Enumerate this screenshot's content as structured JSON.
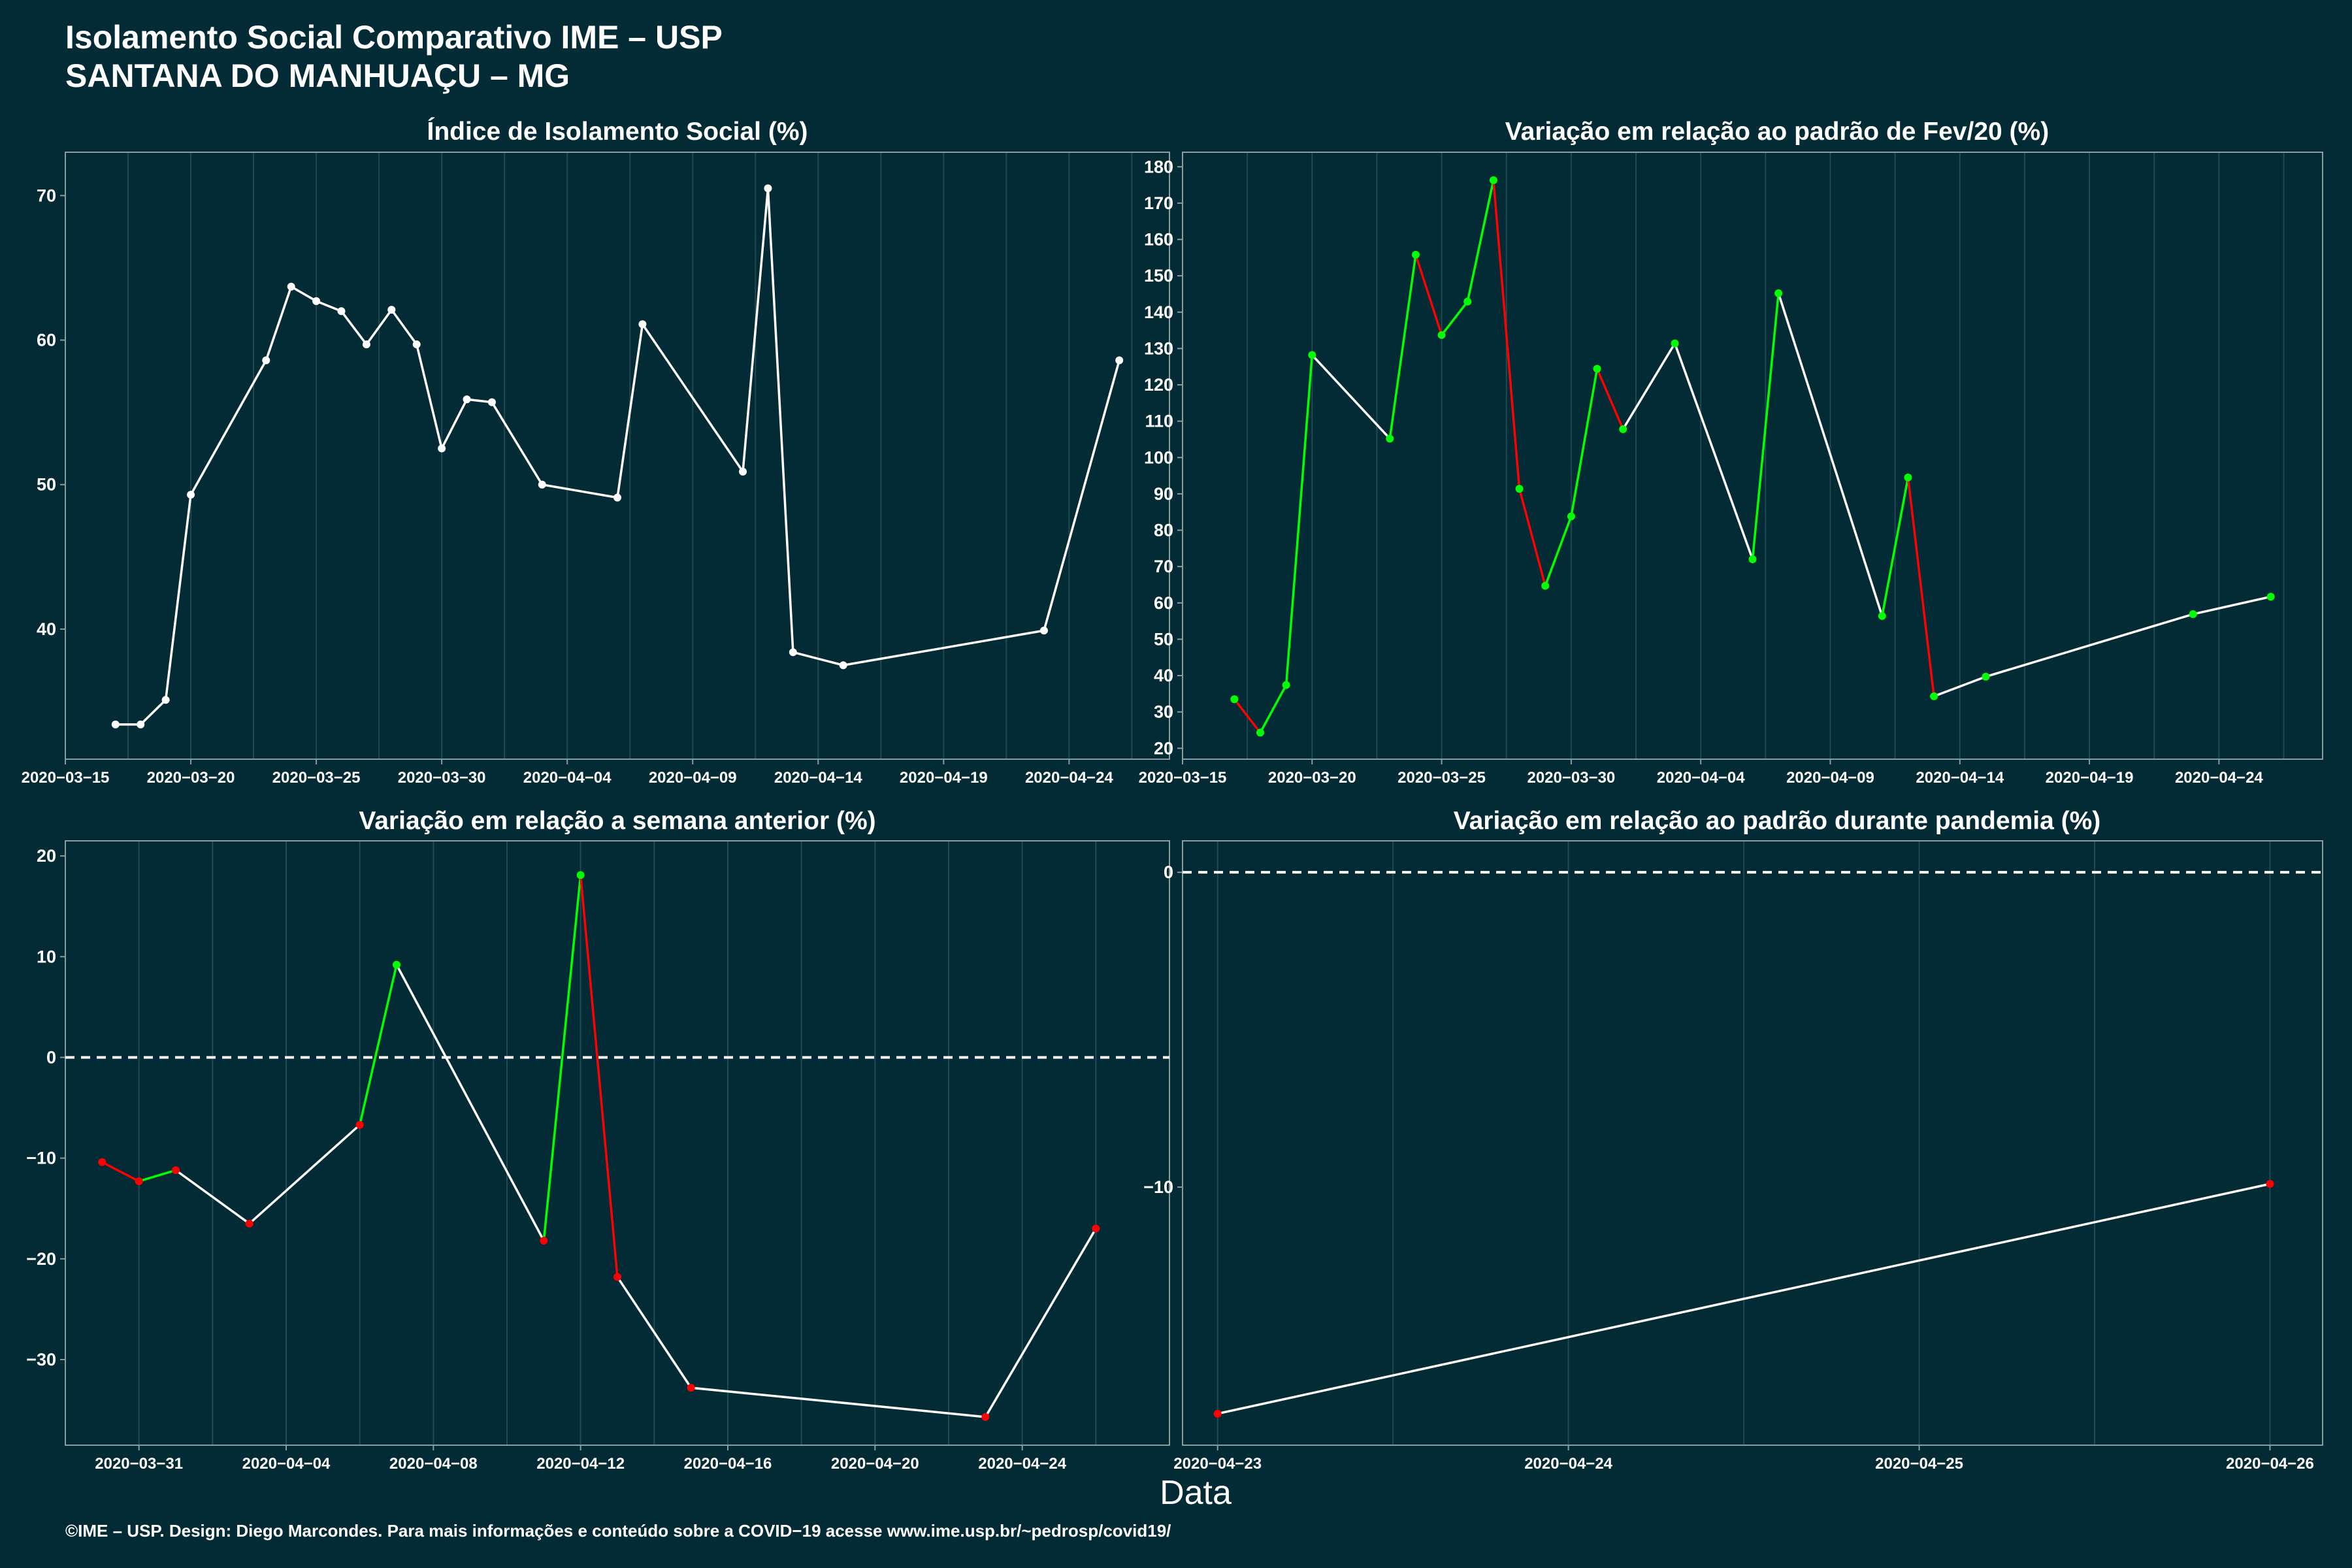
{
  "header": {
    "title": "Isolamento Social Comparativo IME – USP",
    "subtitle": "SANTANA DO MANHUAÇU – MG"
  },
  "xlabel": "Data",
  "caption": "©IME – USP. Design: Diego Marcondes. Para mais informações e conteúdo sobre a COVID−19 acesse www.ime.usp.br/~pedrosp/covid19/",
  "colors": {
    "background": "#022b36",
    "line": "#ffffff",
    "up": "#00ff00",
    "down": "#ff0000",
    "grid": "#1f4a52"
  },
  "chart_data": [
    {
      "type": "line",
      "title": "Índice de Isolamento Social (%)",
      "x": [
        "2020-03-17",
        "2020-03-18",
        "2020-03-19",
        "2020-03-20",
        "2020-03-23",
        "2020-03-24",
        "2020-03-25",
        "2020-03-26",
        "2020-03-27",
        "2020-03-28",
        "2020-03-29",
        "2020-03-30",
        "2020-03-31",
        "2020-04-01",
        "2020-04-03",
        "2020-04-06",
        "2020-04-07",
        "2020-04-11",
        "2020-04-12",
        "2020-04-13",
        "2020-04-15",
        "2020-04-23",
        "2020-04-26"
      ],
      "y": [
        33.4,
        33.4,
        35.1,
        49.3,
        58.6,
        63.7,
        62.7,
        62.0,
        59.7,
        62.1,
        59.7,
        52.5,
        55.9,
        55.7,
        50.0,
        49.1,
        61.1,
        50.9,
        70.5,
        38.4,
        37.5,
        39.9,
        58.6
      ],
      "xlim": [
        "2020-03-15",
        "2020-04-28"
      ],
      "ylim": [
        31,
        73
      ],
      "yticks": [
        40,
        50,
        60,
        70
      ],
      "xticks": [
        "2020-03-15",
        "2020-03-20",
        "2020-03-25",
        "2020-03-30",
        "2020-04-04",
        "2020-04-09",
        "2020-04-14",
        "2020-04-19",
        "2020-04-24"
      ],
      "point_colors": "line"
    },
    {
      "type": "line",
      "title": "Variação em relação ao padrão de Fev/20 (%)",
      "x": [
        "2020-03-17",
        "2020-03-18",
        "2020-03-19",
        "2020-03-20",
        "2020-03-23",
        "2020-03-24",
        "2020-03-25",
        "2020-03-26",
        "2020-03-27",
        "2020-03-28",
        "2020-03-29",
        "2020-03-30",
        "2020-03-31",
        "2020-04-01",
        "2020-04-03",
        "2020-04-06",
        "2020-04-07",
        "2020-04-11",
        "2020-04-12",
        "2020-04-13",
        "2020-04-15",
        "2020-04-23",
        "2020-04-26"
      ],
      "y": [
        33.5,
        24.3,
        37.4,
        128.2,
        105.2,
        155.8,
        133.7,
        142.9,
        176.3,
        91.4,
        64.7,
        83.8,
        124.4,
        107.8,
        131.4,
        72.0,
        145.2,
        56.4,
        94.5,
        34.3,
        39.7,
        56.9,
        61.7
      ],
      "xlim": [
        "2020-03-15",
        "2020-04-28"
      ],
      "ylim": [
        17,
        184
      ],
      "yticks": [
        20,
        30,
        40,
        50,
        60,
        70,
        80,
        90,
        100,
        110,
        120,
        130,
        140,
        150,
        160,
        170,
        180
      ],
      "xticks": [
        "2020-03-15",
        "2020-03-20",
        "2020-03-25",
        "2020-03-30",
        "2020-04-04",
        "2020-04-09",
        "2020-04-14",
        "2020-04-19",
        "2020-04-24"
      ],
      "point_colors": "green"
    },
    {
      "type": "line",
      "title": "Variação em relação a semana anterior (%)",
      "x": [
        "2020-03-30",
        "2020-03-31",
        "2020-04-01",
        "2020-04-03",
        "2020-04-06",
        "2020-04-07",
        "2020-04-11",
        "2020-04-12",
        "2020-04-13",
        "2020-04-15",
        "2020-04-23",
        "2020-04-26"
      ],
      "y": [
        -10.4,
        -12.3,
        -11.2,
        -16.5,
        -6.7,
        9.2,
        -18.2,
        18.1,
        -21.8,
        -32.8,
        -35.7,
        -17.0
      ],
      "xlim": [
        "2020-03-29",
        "2020-04-28"
      ],
      "ylim": [
        -38.5,
        21.5
      ],
      "yticks": [
        -30,
        -20,
        -10,
        0,
        10,
        20
      ],
      "xticks": [
        "2020-03-31",
        "2020-04-04",
        "2020-04-08",
        "2020-04-12",
        "2020-04-16",
        "2020-04-20",
        "2020-04-24"
      ],
      "reference_line": 0,
      "point_colors": "sign"
    },
    {
      "type": "line",
      "title": "Variação em relação ao padrão durante pandemia (%)",
      "x": [
        "2020-04-23",
        "2020-04-26"
      ],
      "y": [
        -17.2,
        -9.9
      ],
      "xlim": [
        "2020-04-22.9",
        "2020-04-26.15"
      ],
      "ylim": [
        -18.2,
        1.0
      ],
      "yticks": [
        -10,
        0
      ],
      "xticks": [
        "2020-04-23",
        "2020-04-24",
        "2020-04-25",
        "2020-04-26"
      ],
      "reference_line": 0,
      "point_colors": "sign"
    }
  ]
}
